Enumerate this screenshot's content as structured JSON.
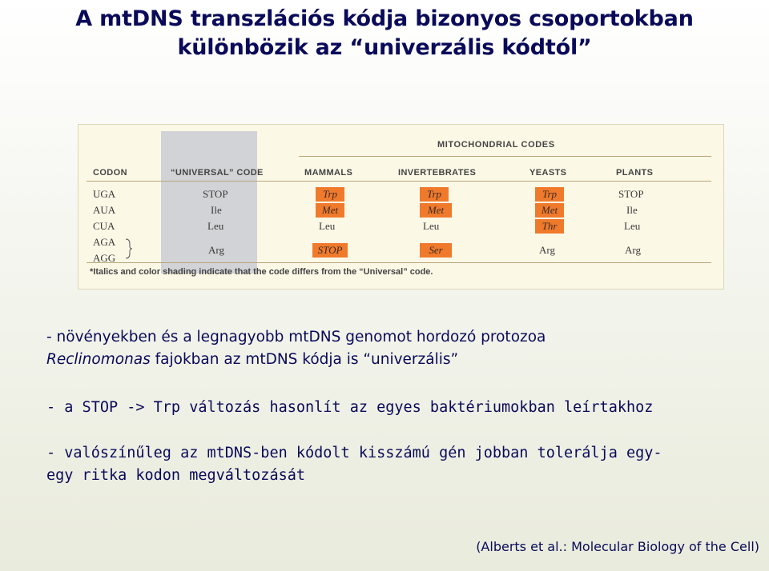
{
  "title": {
    "line1": "A mtDNS transzlációs kódja bizonyos csoportokban",
    "line2": "különbözik az “univerzális kódtól”"
  },
  "figure": {
    "mito_header": "MITOCHONDRIAL CODES",
    "columns": [
      "CODON",
      "“UNIVERSAL” CODE",
      "MAMMALS",
      "INVERTEBRATES",
      "YEASTS",
      "PLANTS"
    ],
    "rows": [
      {
        "codon": "UGA",
        "universal": "STOP",
        "mammals": "Trp",
        "invertebrates": "Trp",
        "yeasts": "Trp",
        "plants": "STOP"
      },
      {
        "codon": "AUA",
        "universal": "Ile",
        "mammals": "Met",
        "invertebrates": "Met",
        "yeasts": "Met",
        "plants": "Ile"
      },
      {
        "codon": "CUA",
        "universal": "Leu",
        "mammals": "Leu",
        "invertebrates": "Leu",
        "yeasts": "Thr",
        "plants": "Leu"
      },
      {
        "codon": "AGA",
        "universal": "Arg",
        "mammals": "STOP",
        "invertebrates": "Ser",
        "yeasts": "Arg",
        "plants": "Arg"
      },
      {
        "codon": "AGG"
      }
    ],
    "footnote": "*Italics and color shading indicate that the code differs from the “Universal” code.",
    "highlight_color": "#f07a2c"
  },
  "text": {
    "p1_a": "- növényekben és a legnagyobb mtDNS genomot hordozó protozoa",
    "p1_b_italic": "Reclinomonas",
    "p1_b_rest": " fajokban az mtDNS kódja is “univerzális”",
    "p2": "- a STOP -> Trp változás hasonlít az egyes baktériumokban leírtakhoz",
    "p3_a": "- valószínűleg az mtDNS-ben kódolt kisszámú gén jobban tolerálja egy-",
    "p3_b": "egy ritka kodon megváltozását"
  },
  "citation": "(Alberts et al.: Molecular Biology of the Cell)"
}
